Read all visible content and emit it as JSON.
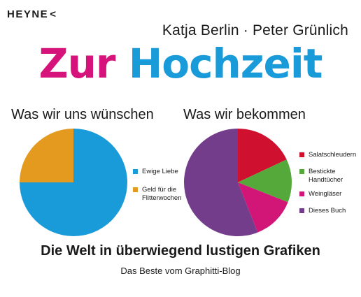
{
  "publisher": {
    "name": "HEYNE",
    "mark": "<"
  },
  "authors": "Katja Berlin · Peter Grünlich",
  "title": {
    "word1": "Zur",
    "word2": "Hochzeit"
  },
  "tagline": "Die Welt in überwiegend lustigen Grafiken",
  "subline": "Das Beste vom Graphitti-Blog",
  "colors": {
    "title_magenta": "#d6137a",
    "title_blue": "#1a9bd9"
  },
  "chart_data": [
    {
      "type": "pie",
      "title": "Was wir uns wünschen",
      "slices": [
        {
          "label": "Ewige Liebe",
          "value": 75,
          "color": "#1a9bd9"
        },
        {
          "label": "Geld für die Flitterwochen",
          "value": 25,
          "color": "#e39a1f"
        }
      ],
      "legend": "right"
    },
    {
      "type": "pie",
      "title": "Was wir bekommen",
      "slices": [
        {
          "label": "Salatschleudern",
          "value": 18,
          "color": "#d0102f"
        },
        {
          "label": "Bestickte Handtücher",
          "value": 13,
          "color": "#55a83a"
        },
        {
          "label": "Weingläser",
          "value": 13,
          "color": "#d21678"
        },
        {
          "label": "Dieses Buch",
          "value": 56,
          "color": "#733d8c"
        }
      ],
      "legend": "right"
    }
  ]
}
